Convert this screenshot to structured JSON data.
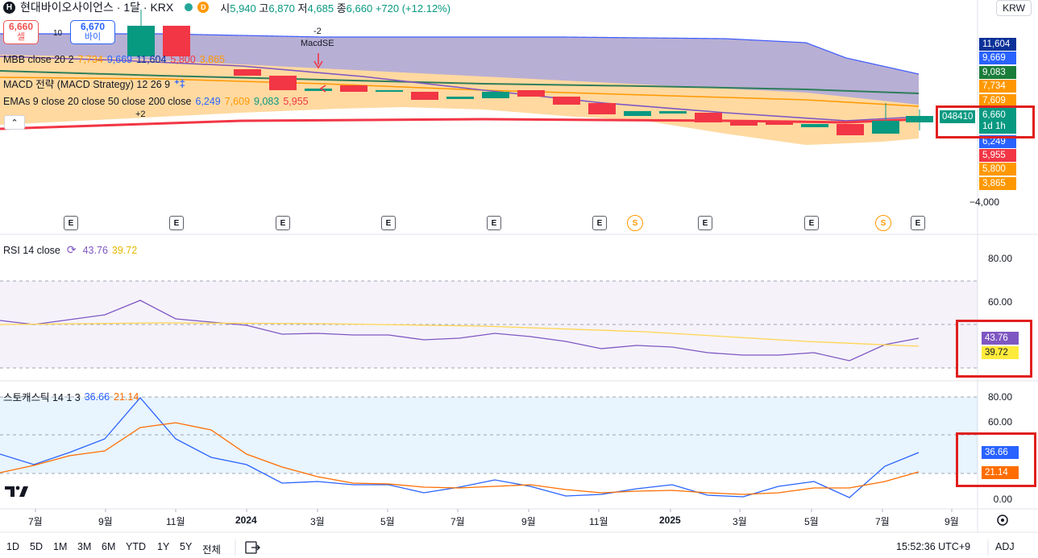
{
  "header": {
    "logo_letter": "H",
    "title": "현대바이오사이언스 · 1달 · KRX",
    "badge_d": "D",
    "ohlc": [
      {
        "k": "시",
        "v": "5,940"
      },
      {
        "k": "고",
        "v": "6,870"
      },
      {
        "k": "저",
        "v": "4,685"
      },
      {
        "k": "종",
        "v": "6,660"
      }
    ],
    "change": "+720 (+12.12%)"
  },
  "trade": {
    "sell_price": "6,660",
    "sell_label": "셀",
    "spread": "10",
    "buy_price": "6,670",
    "buy_label": "바이"
  },
  "currency": "KRW",
  "legends": {
    "mbb": {
      "name": "MBB close 20 2",
      "values": [
        "7,734",
        "9,669",
        "11,604",
        "5,800",
        "3,865"
      ],
      "colors": [
        "#ff9800",
        "#2962ff",
        "#0c3299",
        "#f23645",
        "#ff9800"
      ]
    },
    "macd": {
      "name": "MACD 전략 (MACD Strategy) 12 26 9"
    },
    "emas": {
      "name": "EMAs 9 close 20 close 50 close 200 close",
      "values": [
        "6,249",
        "7,609",
        "9,083",
        "5,955"
      ],
      "colors": [
        "#2962ff",
        "#ff9800",
        "#089981",
        "#f23645"
      ]
    }
  },
  "signals": {
    "top_num": "-2",
    "top_label": "MacdSE",
    "bottom_num": "+2"
  },
  "price_axis": {
    "top": "11,604",
    "p9669": "9,669",
    "p9083": "9,083",
    "p7734": "7,734",
    "p7609": "7,609",
    "ticker": "048410",
    "last": "6,660",
    "last_sub": "1d 1h",
    "p6249": "6,249",
    "p5955": "5,955",
    "p5800": "5,800",
    "p3865": "3,865",
    "bottom": "−4,000"
  },
  "rsi": {
    "label": "RSI 14 close",
    "value1": "43.76",
    "value2": "39.72",
    "ticks": [
      "80.00",
      "60.00"
    ]
  },
  "stoch": {
    "label": "스토캐스틱 14 1 3",
    "value1": "36.66",
    "value2": "21.14",
    "ticks": [
      "80.00",
      "60.00",
      "0.00"
    ]
  },
  "time_axis": [
    "7월",
    "9월",
    "11월",
    "2024",
    "3월",
    "5월",
    "7월",
    "9월",
    "11월",
    "2025",
    "3월",
    "5월",
    "7월",
    "9월"
  ],
  "toolbar": {
    "ranges": [
      "1D",
      "5D",
      "1M",
      "3M",
      "6M",
      "YTD",
      "1Y",
      "5Y",
      "전체"
    ],
    "clock": "15:52:36 UTC+9",
    "adj": "ADJ"
  },
  "events": {
    "e": "E",
    "s": "S"
  },
  "colors": {
    "up": "#089981",
    "down": "#f23645",
    "accent": "#2962ff"
  }
}
